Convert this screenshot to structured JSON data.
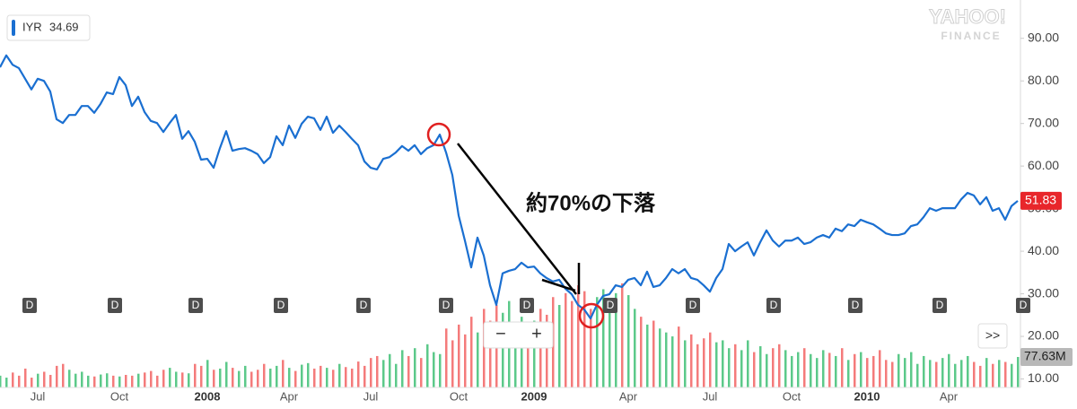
{
  "chart_data": {
    "type": "line",
    "annotation": "約70%の下落",
    "legend_value": 34.69,
    "dividend_label": "D",
    "controls": {
      "zoom_out": "−",
      "zoom_in": "+",
      "more": ">>"
    },
    "logo": {
      "brand": "YAHOO!",
      "product": "FINANCE"
    },
    "grid": false,
    "categories": [
      null,
      null,
      null,
      null,
      null,
      null,
      "Jul",
      null,
      null,
      null,
      null,
      null,
      null,
      null,
      null,
      null,
      null,
      null,
      null,
      "Oct",
      null,
      null,
      null,
      null,
      null,
      null,
      null,
      null,
      null,
      null,
      null,
      null,
      null,
      "2008",
      null,
      null,
      null,
      null,
      null,
      null,
      null,
      null,
      null,
      null,
      null,
      null,
      "Apr",
      null,
      null,
      null,
      null,
      null,
      null,
      null,
      null,
      null,
      null,
      null,
      null,
      "Jul",
      null,
      null,
      null,
      null,
      null,
      null,
      null,
      null,
      null,
      null,
      null,
      null,
      null,
      "Oct",
      null,
      null,
      null,
      null,
      null,
      null,
      null,
      null,
      null,
      null,
      null,
      "2009",
      null,
      null,
      null,
      null,
      null,
      null,
      null,
      null,
      null,
      null,
      null,
      null,
      null,
      null,
      "Apr",
      null,
      null,
      null,
      null,
      null,
      null,
      null,
      null,
      null,
      null,
      null,
      null,
      "Jul",
      null,
      null,
      null,
      null,
      null,
      null,
      null,
      null,
      null,
      null,
      null,
      null,
      "Oct",
      null,
      null,
      null,
      null,
      null,
      null,
      null,
      null,
      null,
      null,
      null,
      "2010",
      null,
      null,
      null,
      null,
      null,
      null,
      null,
      null,
      null,
      null,
      null,
      null,
      "Apr",
      null,
      null,
      null,
      null,
      null,
      null,
      null,
      null,
      null,
      null,
      null
    ],
    "ylim": [
      8,
      99
    ],
    "yticks": [
      {
        "value": 10,
        "label": "10.00"
      },
      {
        "value": 20,
        "label": "20.00"
      },
      {
        "value": 30,
        "label": "30.00"
      },
      {
        "value": 40,
        "label": "40.00"
      },
      {
        "value": 50,
        "label": "50.00"
      },
      {
        "value": 60,
        "label": "60.00"
      },
      {
        "value": 70,
        "label": "70.00"
      },
      {
        "value": 80,
        "label": "80.00"
      },
      {
        "value": 90,
        "label": "90.00"
      }
    ],
    "y2lim": [
      0,
      986
    ],
    "series": [
      {
        "name": "IYR",
        "color": "#1a6fd1",
        "values": [
          83.2,
          86.0,
          83.8,
          83.0,
          80.5,
          78.0,
          80.5,
          80.0,
          77.5,
          71.0,
          70.1,
          72.0,
          72.0,
          74.1,
          74.1,
          72.5,
          74.6,
          77.3,
          76.9,
          80.9,
          79.0,
          74.1,
          76.3,
          72.7,
          70.6,
          70.1,
          68.0,
          70.1,
          72.0,
          66.4,
          68.2,
          65.7,
          61.5,
          61.7,
          59.6,
          64.2,
          68.2,
          63.6,
          64.0,
          64.2,
          63.6,
          62.8,
          60.7,
          62.1,
          67.0,
          64.9,
          69.5,
          66.6,
          69.9,
          71.6,
          71.2,
          68.5,
          71.6,
          67.8,
          69.5,
          68.0,
          66.4,
          64.9,
          61.1,
          59.6,
          59.2,
          61.7,
          62.1,
          63.2,
          64.7,
          63.6,
          64.9,
          62.8,
          64.2,
          64.9,
          67.4,
          63.2,
          57.9,
          48.4,
          42.5,
          36.2,
          43.2,
          39.0,
          32.0,
          27.4,
          34.8,
          35.4,
          35.8,
          37.3,
          36.2,
          36.4,
          34.8,
          33.7,
          32.9,
          33.3,
          31.2,
          29.9,
          27.4,
          26.3,
          24.2,
          27.4,
          29.5,
          29.9,
          32.0,
          31.6,
          33.3,
          33.7,
          32.0,
          35.2,
          31.6,
          32.0,
          33.7,
          35.8,
          34.8,
          35.8,
          33.7,
          33.3,
          32.0,
          30.5,
          33.7,
          35.8,
          41.7,
          40.0,
          41.1,
          42.1,
          39.0,
          42.1,
          44.9,
          42.5,
          41.1,
          42.5,
          42.5,
          43.2,
          41.7,
          42.1,
          43.2,
          43.8,
          43.2,
          45.3,
          44.7,
          46.3,
          45.9,
          47.4,
          46.8,
          46.3,
          45.3,
          44.2,
          43.8,
          43.8,
          44.2,
          45.9,
          46.3,
          48.0,
          50.1,
          49.5,
          50.1,
          50.1,
          50.1,
          52.2,
          53.7,
          53.1,
          51.0,
          52.7,
          49.5,
          50.1,
          47.4,
          50.6,
          51.83
        ]
      },
      {
        "axis": "y2",
        "up_color": "#5cc98a",
        "down_color": "#f47b7b",
        "last_label": "77.63M",
        "values": [
          30,
          25,
          38,
          30,
          48,
          25,
          35,
          40,
          32,
          55,
          60,
          45,
          35,
          40,
          30,
          28,
          33,
          36,
          30,
          28,
          32,
          30,
          35,
          38,
          42,
          30,
          45,
          50,
          40,
          38,
          36,
          60,
          55,
          70,
          45,
          48,
          65,
          50,
          42,
          55,
          40,
          45,
          60,
          48,
          55,
          70,
          50,
          42,
          58,
          62,
          48,
          55,
          50,
          45,
          60,
          52,
          48,
          66,
          55,
          75,
          80,
          70,
          85,
          60,
          95,
          80,
          100,
          75,
          110,
          90,
          85,
          150,
          120,
          160,
          135,
          180,
          140,
          200,
          170,
          210,
          190,
          220,
          160,
          180,
          150,
          170,
          200,
          185,
          230,
          210,
          240,
          220,
          260,
          245,
          200,
          230,
          250,
          215,
          240,
          265,
          235,
          200,
          180,
          160,
          170,
          150,
          140,
          130,
          155,
          120,
          135,
          110,
          125,
          140,
          115,
          120,
          100,
          110,
          95,
          120,
          90,
          105,
          85,
          100,
          110,
          95,
          80,
          90,
          100,
          85,
          75,
          95,
          88,
          80,
          100,
          70,
          85,
          90,
          75,
          80,
          95,
          70,
          65,
          85,
          75,
          90,
          60,
          80,
          70,
          65,
          75,
          85,
          60,
          70,
          80,
          65,
          55,
          75,
          60,
          70,
          65,
          60,
          77.63
        ]
      }
    ]
  }
}
